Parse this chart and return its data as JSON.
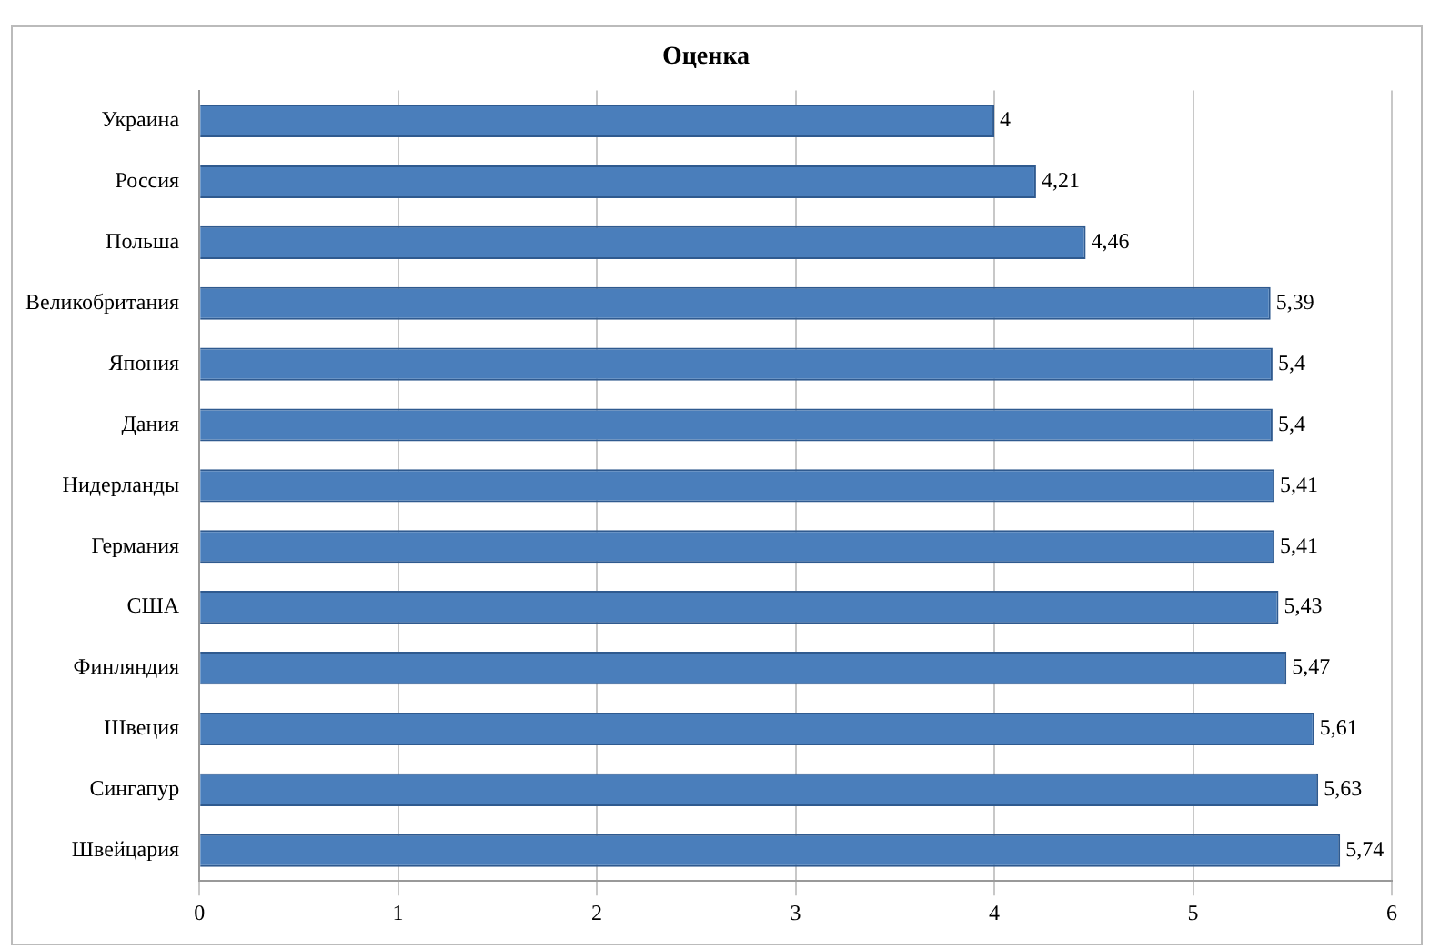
{
  "chart_data": {
    "type": "bar",
    "orientation": "horizontal",
    "title": "Оценка",
    "categories": [
      "Украина",
      "Россия",
      "Польша",
      "Великобритания",
      "Япония",
      "Дания",
      "Нидерланды",
      "Германия",
      "США",
      "Финляндия",
      "Швеция",
      "Сингапур",
      "Швейцария"
    ],
    "values": [
      4,
      4.21,
      4.46,
      5.39,
      5.4,
      5.4,
      5.41,
      5.41,
      5.43,
      5.47,
      5.61,
      5.63,
      5.74
    ],
    "value_labels": [
      "4",
      "4,21",
      "4,46",
      "5,39",
      "5,4",
      "5,4",
      "5,41",
      "5,41",
      "5,43",
      "5,47",
      "5,61",
      "5,63",
      "5,74"
    ],
    "color": "#4a7ebb",
    "xlim": [
      0,
      6
    ],
    "xticks": [
      0,
      1,
      2,
      3,
      4,
      5,
      6
    ],
    "grid": "x"
  }
}
